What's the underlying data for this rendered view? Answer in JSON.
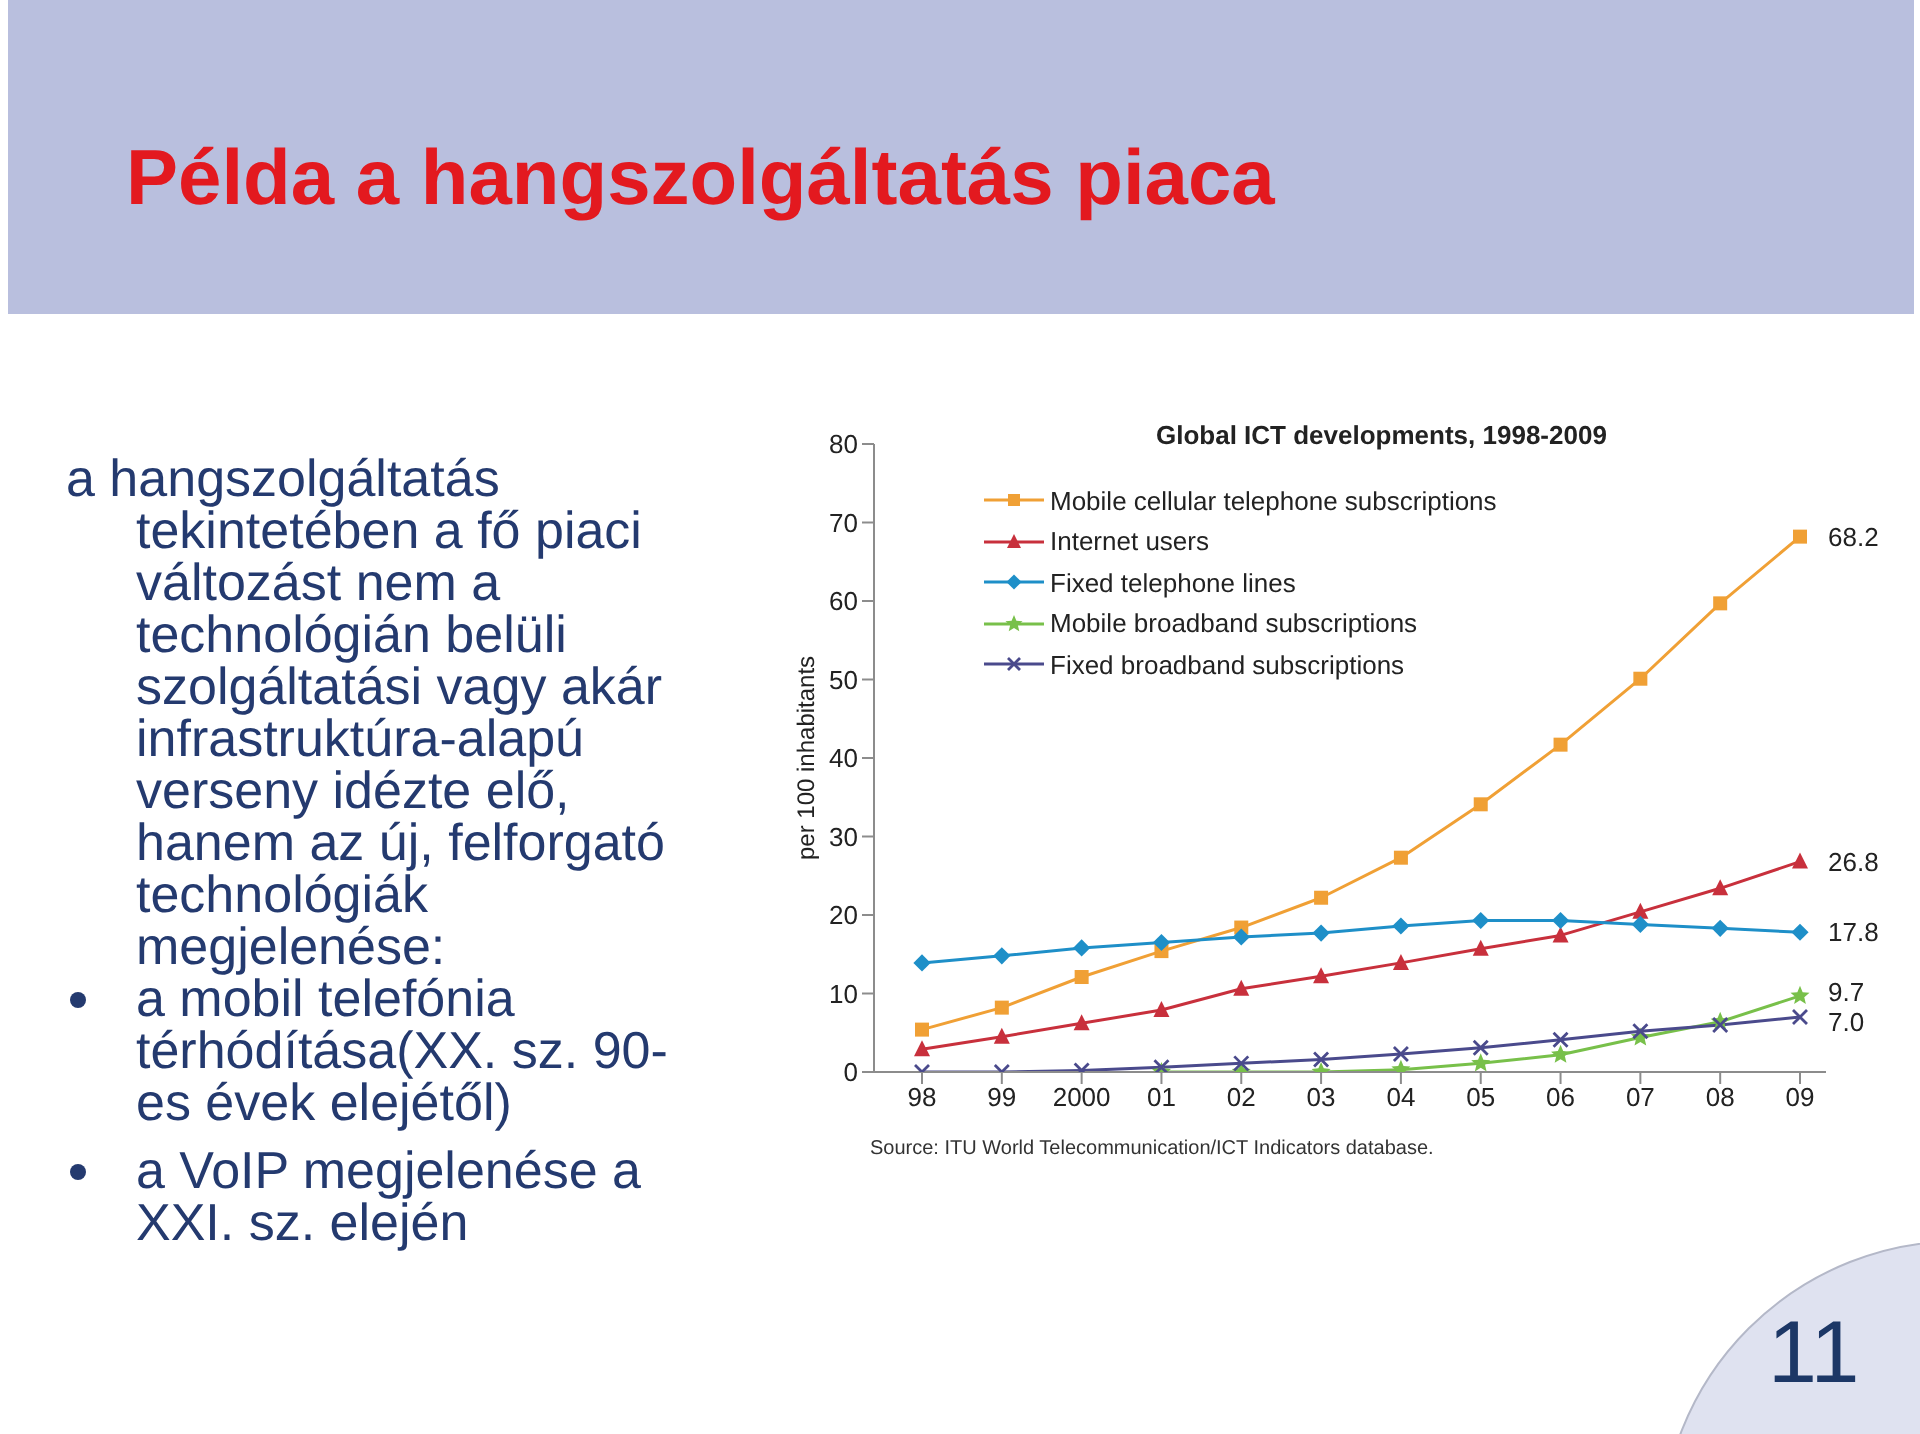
{
  "chart_data": {
    "type": "line",
    "title": "Példa a hangszolgáltatás piaca",
    "subtitle": "Global ICT developments, 1998-2009",
    "ylabel": "per 100 inhabitants",
    "categories": [
      "98",
      "99",
      "2000",
      "01",
      "02",
      "03",
      "04",
      "05",
      "06",
      "07",
      "08",
      "09"
    ],
    "series": [
      {
        "name": "Mobile cellular telephone subscriptions",
        "color": "#f0a035",
        "marker": "square",
        "values": [
          5.4,
          8.2,
          12.1,
          15.4,
          18.4,
          22.2,
          27.3,
          34.1,
          41.7,
          50.1,
          59.7,
          68.2
        ],
        "value_labels": [
          null,
          null,
          null,
          null,
          null,
          null,
          null,
          null,
          null,
          null,
          null,
          "68.2"
        ]
      },
      {
        "name": "Internet users",
        "color": "#c8303c",
        "marker": "triangle",
        "values": [
          2.9,
          4.5,
          6.2,
          7.9,
          10.6,
          12.2,
          13.9,
          15.7,
          17.4,
          20.4,
          23.4,
          26.8
        ],
        "value_labels": [
          null,
          null,
          null,
          null,
          null,
          null,
          null,
          null,
          null,
          null,
          null,
          "26.8"
        ]
      },
      {
        "name": "Fixed telephone lines",
        "color": "#1e8fc8",
        "marker": "diamond",
        "values": [
          13.9,
          14.8,
          15.8,
          16.5,
          17.2,
          17.7,
          18.6,
          19.3,
          19.3,
          18.8,
          18.3,
          17.8
        ],
        "value_labels": [
          null,
          null,
          null,
          null,
          null,
          null,
          null,
          null,
          null,
          null,
          null,
          "17.8"
        ]
      },
      {
        "name": "Mobile broadband subscriptions",
        "color": "#78c04a",
        "marker": "star",
        "values": [
          null,
          null,
          null,
          0,
          0,
          0,
          0.3,
          1.1,
          2.2,
          4.4,
          6.4,
          9.7
        ],
        "value_labels": [
          null,
          null,
          null,
          null,
          null,
          null,
          null,
          null,
          null,
          null,
          null,
          "9.7"
        ]
      },
      {
        "name": "Fixed broadband subscriptions",
        "color": "#4a4a8c",
        "marker": "cross",
        "values": [
          0,
          0,
          0.2,
          0.6,
          1.1,
          1.6,
          2.3,
          3.1,
          4.1,
          5.2,
          6.0,
          7.0
        ],
        "value_labels": [
          null,
          null,
          null,
          null,
          null,
          null,
          null,
          null,
          null,
          null,
          null,
          "7.0"
        ]
      }
    ],
    "ylim": [
      0,
      80
    ],
    "yticks": [
      0,
      10,
      20,
      30,
      40,
      50,
      60,
      70,
      80
    ],
    "legend": "top left",
    "line_style": "solid",
    "annotations": [
      "a hangszolgáltatás tekintetében a fő piaci változást nem a technológián belüli szolgáltatási vagy akár infrastruktúra-alapú verseny idézte elő, hanem az új, felforgató technológiák megjelenése:",
      "a mobil telefónia térhódítása(XX. sz. 90-es évek elejétől)",
      "a VoIP megjelenése a XXI. sz. elején",
      "Source: ITU World Telecommunication/ICT Indicators database.",
      "11"
    ]
  }
}
